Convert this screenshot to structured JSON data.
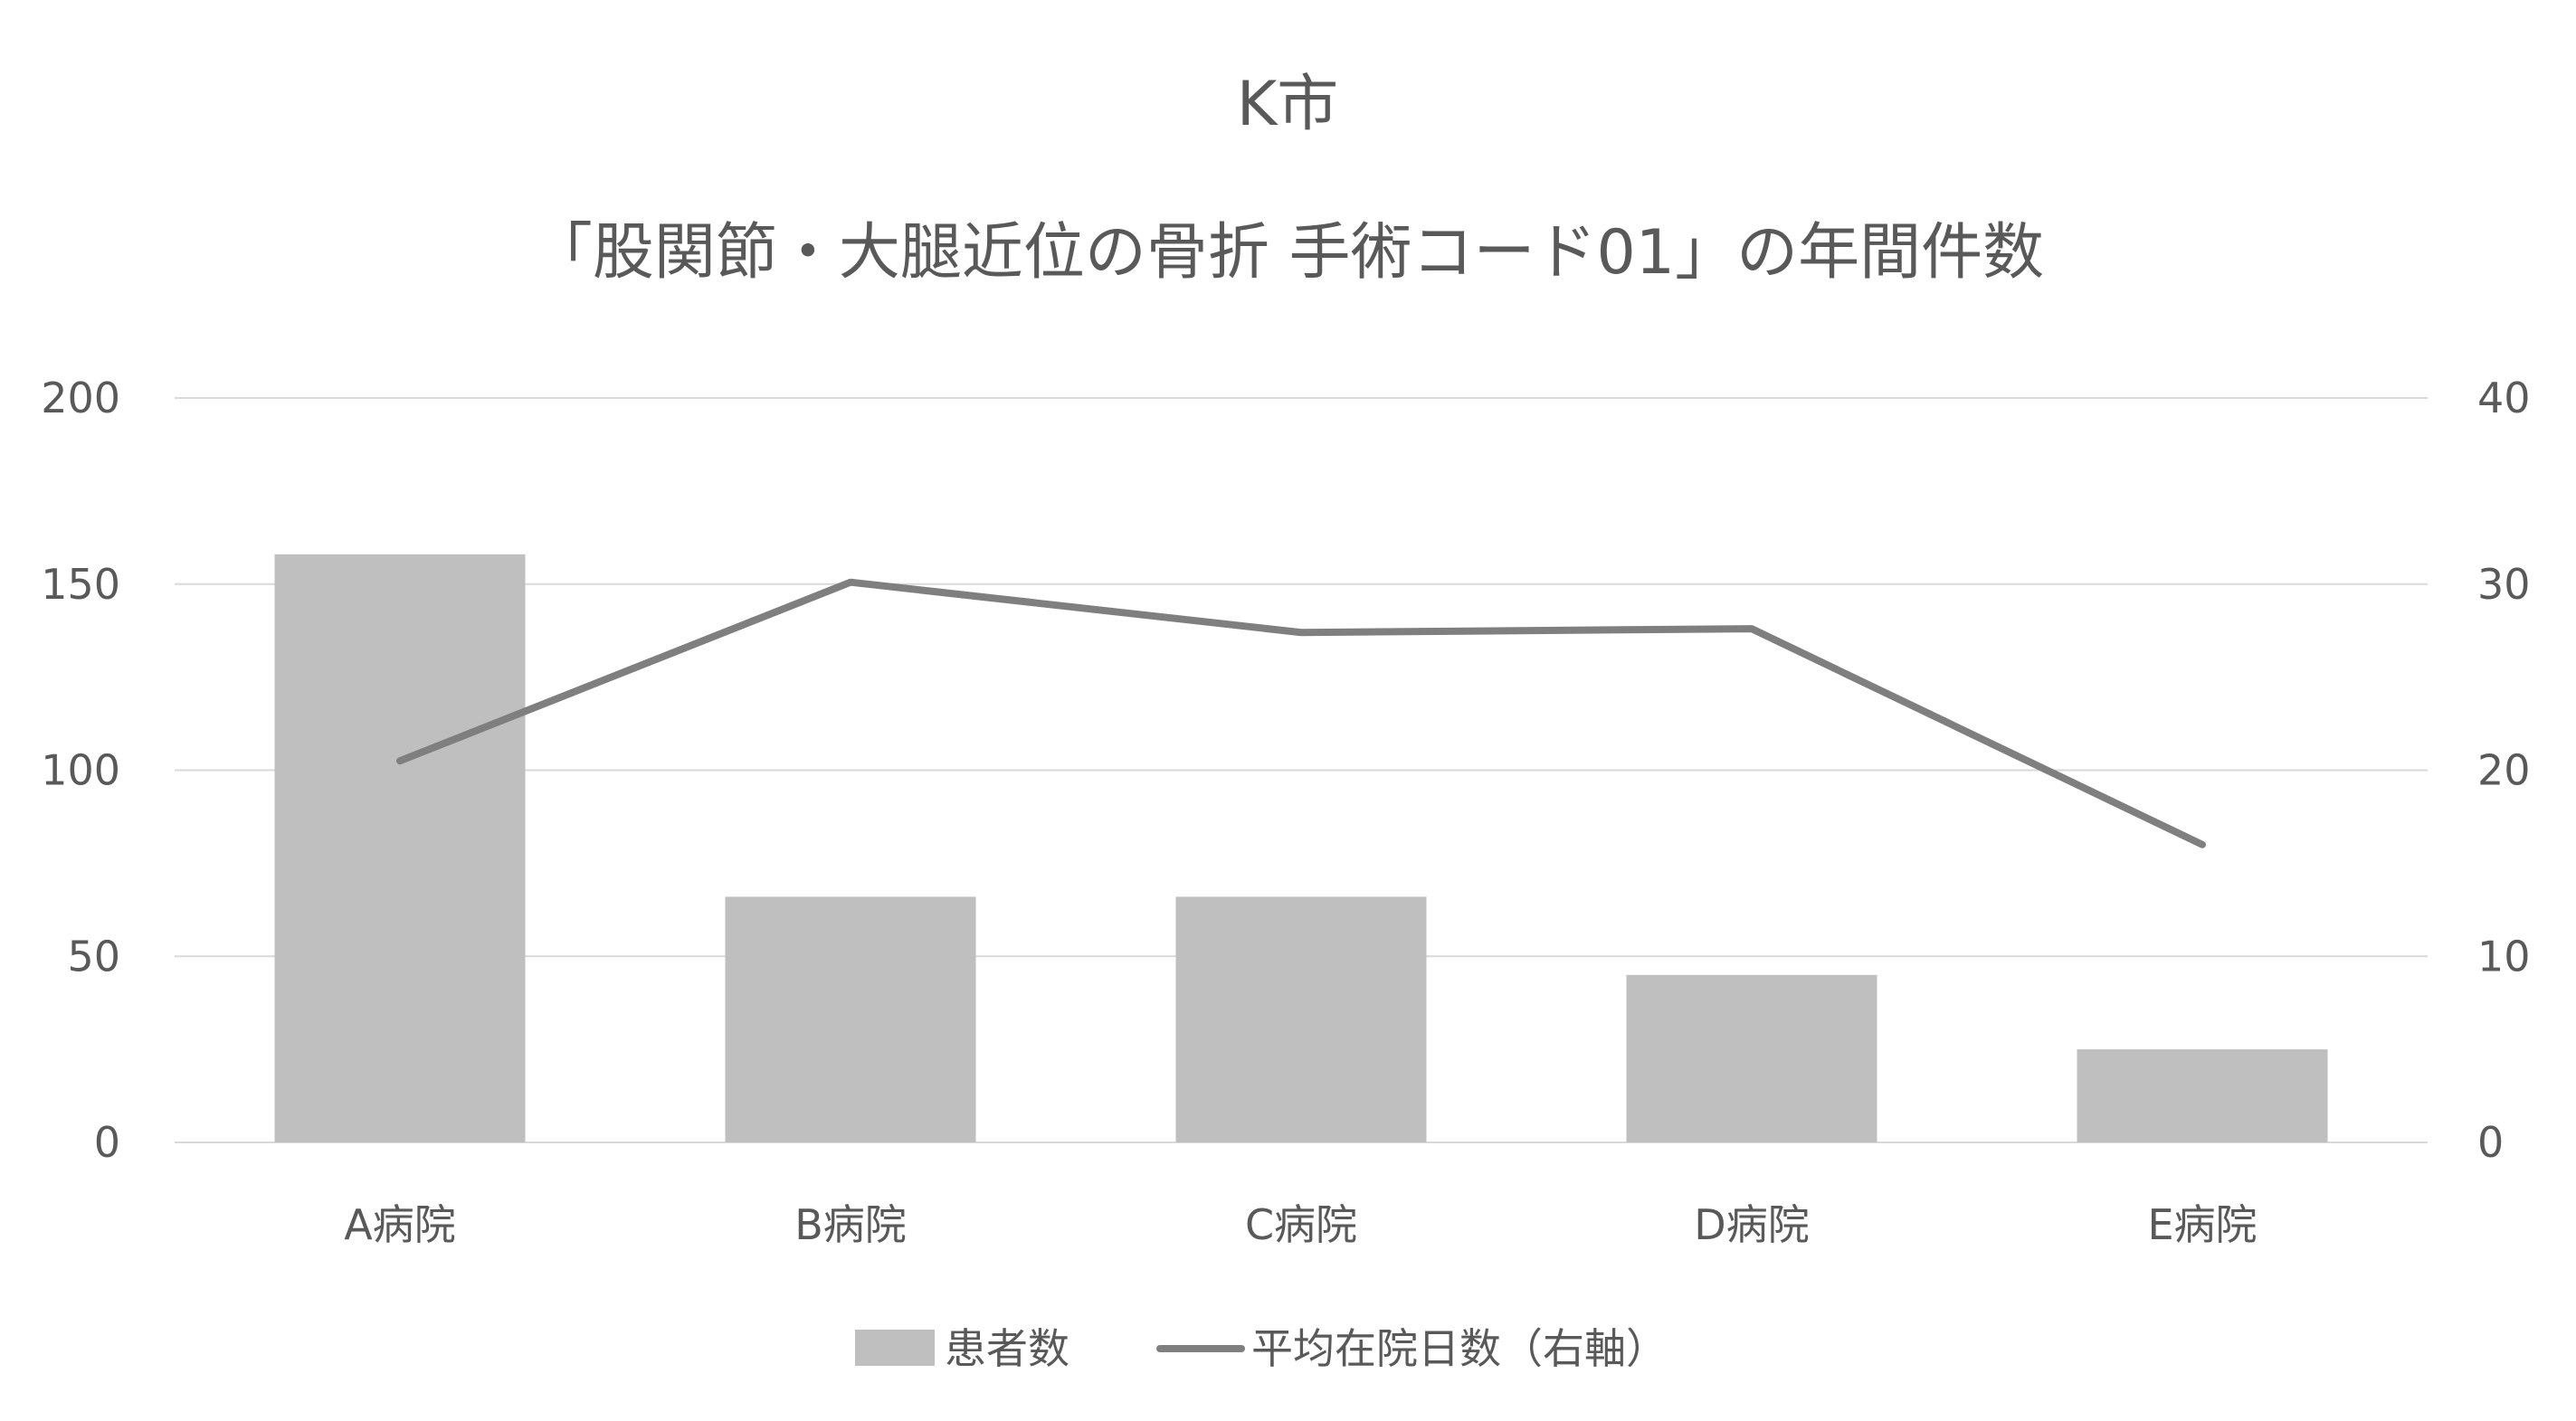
{
  "chart_data": {
    "type": "bar",
    "title": "K市",
    "subtitle": "「股関節・大腿近位の骨折 手術コード01」の年間件数",
    "categories": [
      "A病院",
      "B病院",
      "C病院",
      "D病院",
      "E病院"
    ],
    "series": [
      {
        "name": "患者数",
        "type": "bar",
        "axis": "left",
        "values": [
          158,
          66,
          66,
          45,
          25
        ],
        "color": "#bfbfbf"
      },
      {
        "name": "平均在院日数（右軸）",
        "type": "line",
        "axis": "right",
        "values": [
          20.5,
          30.1,
          27.4,
          27.6,
          16.0
        ],
        "color": "#7f7f7f"
      }
    ],
    "y_left": {
      "ylim": [
        0,
        200
      ],
      "ticks": [
        "0",
        "50",
        "100",
        "150",
        "200"
      ]
    },
    "y_right": {
      "ylim": [
        0,
        40
      ],
      "ticks": [
        "0",
        "10",
        "20",
        "30",
        "40"
      ]
    },
    "grid": true,
    "legend_position": "bottom-center"
  },
  "colors": {
    "text": "#595959",
    "grid": "#d9d9d9"
  }
}
